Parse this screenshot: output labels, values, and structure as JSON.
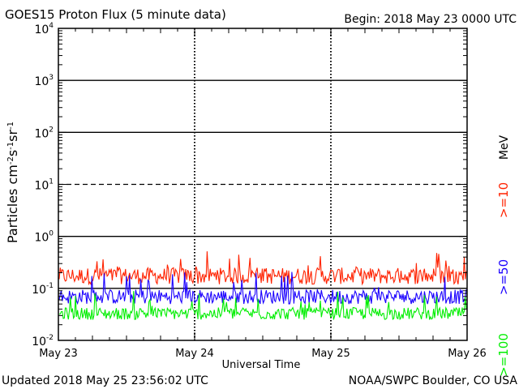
{
  "header": {
    "title": "GOES15 Proton Flux (5 minute data)",
    "begin": "Begin: 2018 May 23 0000 UTC"
  },
  "footer": {
    "updated": "Updated 2018 May 25 23:56:02 UTC",
    "credit": "NOAA/SWPC Boulder, CO USA"
  },
  "legend": {
    "unit": "MeV",
    "labels": [
      ">=10",
      ">=50",
      ">=100"
    ]
  },
  "colors": {
    "ge10": "#ff2200",
    "ge50": "#1a00ff",
    "ge100": "#00ee00",
    "axis": "#000000"
  },
  "chart_data": {
    "type": "line",
    "title": "GOES15 Proton Flux (5 minute data)",
    "xlabel": "Universal Time",
    "ylabel": "Particles cm-2s-1sr-1",
    "yscale": "log",
    "ylim": [
      0.01,
      10000
    ],
    "x_ticks": [
      "May 23",
      "May 24",
      "May 25",
      "May 26"
    ],
    "y_ticks": [
      {
        "base": "10",
        "exp": "4"
      },
      {
        "base": "10",
        "exp": "3"
      },
      {
        "base": "10",
        "exp": "2"
      },
      {
        "base": "10",
        "exp": "1"
      },
      {
        "base": "10",
        "exp": "0"
      },
      {
        "base": "10",
        "exp": "-1"
      },
      {
        "base": "10",
        "exp": "-2"
      }
    ],
    "threshold_lines": [
      {
        "value": 1000,
        "style": "solid"
      },
      {
        "value": 100,
        "style": "solid"
      },
      {
        "value": 10,
        "style": "dashed"
      },
      {
        "value": 1,
        "style": "solid"
      },
      {
        "value": 0.1,
        "style": "solid"
      }
    ],
    "series": [
      {
        "name": ">=10 MeV",
        "typical": 0.19,
        "min": 0.12,
        "max": 0.52
      },
      {
        "name": ">=50 MeV",
        "typical": 0.075,
        "min": 0.05,
        "max": 0.22
      },
      {
        "name": ">=100 MeV",
        "typical": 0.035,
        "min": 0.025,
        "max": 0.09
      }
    ]
  }
}
